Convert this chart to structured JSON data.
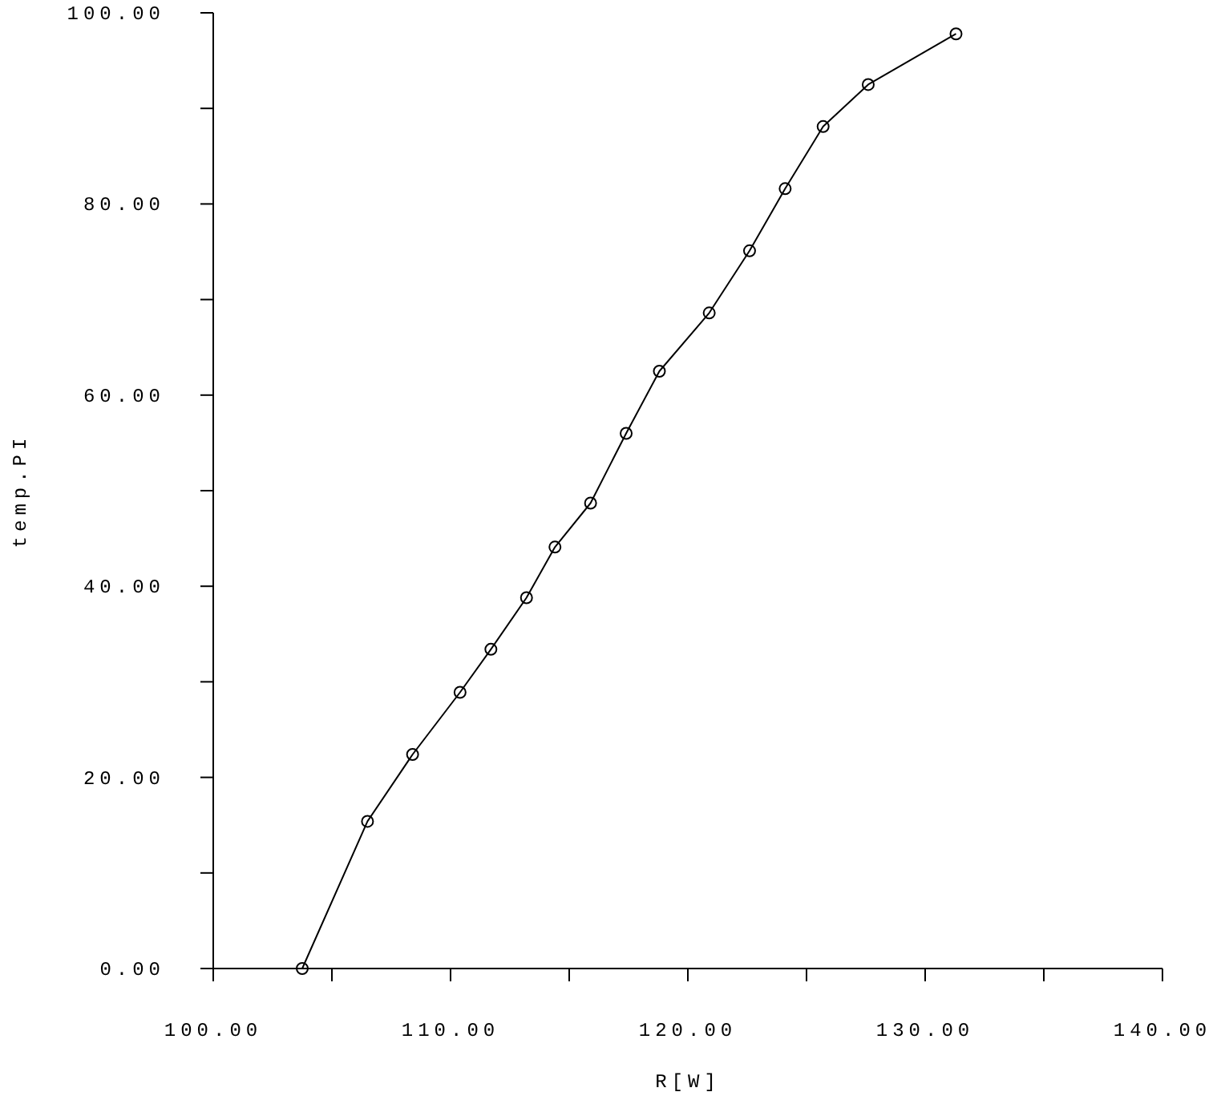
{
  "chart_data": {
    "type": "line",
    "xlabel": "R[W]",
    "ylabel": "temp.PI",
    "marker": "circle",
    "line_style": "solid",
    "grid": false,
    "xlim": [
      100,
      140
    ],
    "xticks": [
      {
        "value": 100,
        "label": "100.00"
      },
      {
        "value": 105,
        "label": null
      },
      {
        "value": 110,
        "label": "110.00"
      },
      {
        "value": 115,
        "label": null
      },
      {
        "value": 120,
        "label": "120.00"
      },
      {
        "value": 125,
        "label": null
      },
      {
        "value": 130,
        "label": "130.00"
      },
      {
        "value": 135,
        "label": null
      },
      {
        "value": 140,
        "label": "140.00"
      }
    ],
    "ylim": [
      0,
      100
    ],
    "yticks": [
      {
        "value": 0,
        "label": "0.00"
      },
      {
        "value": 10,
        "label": null
      },
      {
        "value": 20,
        "label": "20.00"
      },
      {
        "value": 30,
        "label": null
      },
      {
        "value": 40,
        "label": "40.00"
      },
      {
        "value": 50,
        "label": null
      },
      {
        "value": 60,
        "label": "60.00"
      },
      {
        "value": 70,
        "label": null
      },
      {
        "value": 80,
        "label": "80.00"
      },
      {
        "value": 90,
        "label": null
      },
      {
        "value": 100,
        "label": "100.00"
      }
    ],
    "series": [
      {
        "color": "#000000",
        "x": [
          103.75,
          106.5,
          108.4,
          110.4,
          111.7,
          113.2,
          114.4,
          115.9,
          117.4,
          118.8,
          120.9,
          122.6,
          124.1,
          125.7,
          127.6,
          131.3
        ],
        "values": [
          0,
          15.4,
          22.4,
          28.9,
          33.4,
          38.8,
          44.1,
          48.7,
          56.0,
          62.5,
          68.6,
          75.1,
          81.6,
          88.1,
          92.5,
          97.8
        ]
      }
    ]
  }
}
